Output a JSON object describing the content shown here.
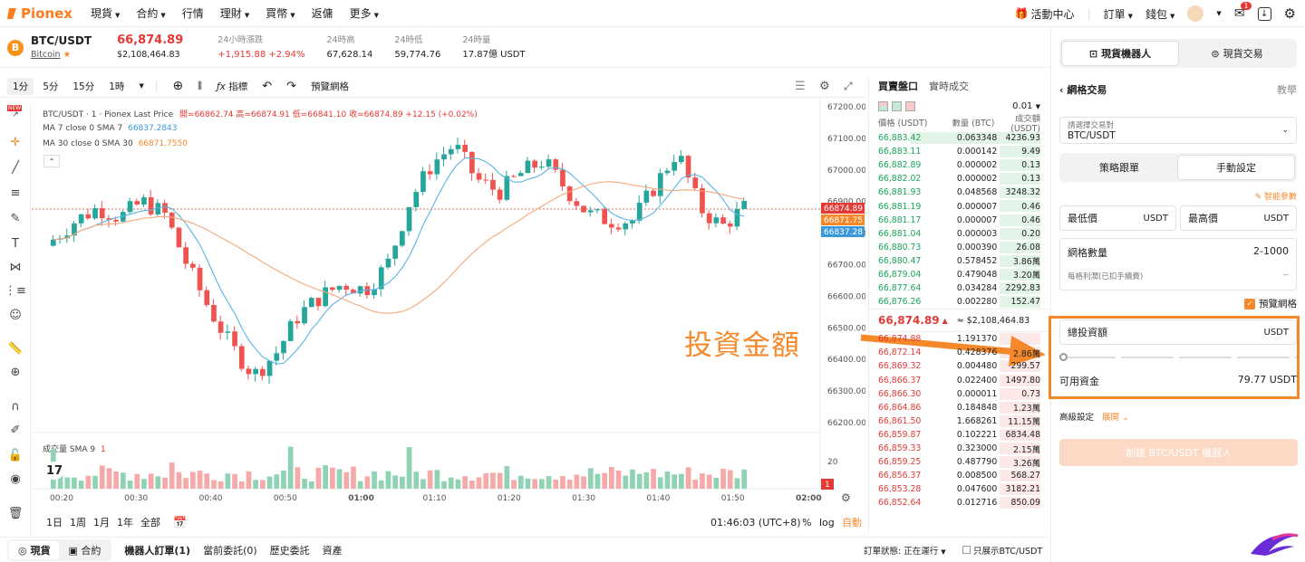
{
  "nav": {
    "brand": "Pionex",
    "menu": [
      {
        "label": "現貨",
        "caret": true
      },
      {
        "label": "合約",
        "caret": true
      },
      {
        "label": "行情",
        "caret": false
      },
      {
        "label": "理財",
        "caret": true
      },
      {
        "label": "買幣",
        "caret": true
      },
      {
        "label": "返傭",
        "caret": false
      },
      {
        "label": "更多",
        "caret": true
      }
    ],
    "activity": "活動中心",
    "orders": "訂單",
    "wallet": "錢包",
    "mail_badge": "1"
  },
  "ticker": {
    "pair": "BTC/USDT",
    "coin_name": "Bitcoin",
    "coin_letter": "B",
    "price": "66,874.89",
    "price_usd": "$2,108,464.83",
    "change_label": "24小時漲跌",
    "change_value": "+1,915.88 +2.94%",
    "high_label": "24時高",
    "high_value": "67,628.14",
    "low_label": "24時低",
    "low_value": "59,774.76",
    "vol_label": "24時量",
    "vol_value": "17.87億 USDT"
  },
  "toolbar": {
    "intervals": [
      "1分",
      "5分",
      "15分",
      "1時"
    ],
    "indicators": "指標",
    "preview_grid": "預覽網格"
  },
  "chart": {
    "legend_main": "BTC/USDT · 1 · Pionex Last Price",
    "ohlc": "開=66862.74 高=66874.91 低=66841.10 收=66874.89 +12.15 (+0.02%)",
    "ma7_label": "MA 7 close 0 SMA 7",
    "ma7_value": "66837.2843",
    "ma30_label": "MA 30 close 0 SMA 30",
    "ma30_value": "66871.7550",
    "volume_label": "成交量 SMA 9",
    "volume_value": "1",
    "price_ticks": [
      "67200.00",
      "67100.00",
      "67000.00",
      "66900.00",
      "66800.00",
      "66700.00",
      "66600.00",
      "66500.00",
      "66400.00",
      "66300.00",
      "66200.00"
    ],
    "vol_tick": "20",
    "vol_last": "1",
    "price_tag_last": "66874.89",
    "price_tag_ma30": "66871.75",
    "price_tag_ma7": "66837.28",
    "time_ticks": [
      "00:20",
      "00:30",
      "00:40",
      "00:50",
      "01:00",
      "01:10",
      "01:20",
      "01:30",
      "01:40",
      "01:50",
      "02:00"
    ],
    "colors": {
      "up": "#26a69a",
      "down": "#ef5350",
      "ma7": "#5ab4e5",
      "ma30": "#f5a97a"
    }
  },
  "range_bar": {
    "ranges": [
      "1日",
      "1周",
      "1月",
      "1年",
      "全部"
    ],
    "clock": "01:46:03 (UTC+8)",
    "percent": "%",
    "log": "log",
    "auto": "自動"
  },
  "orderbook": {
    "tab_book": "買賣盤口",
    "tab_trades": "實時成交",
    "precision": "0.01",
    "col_price": "價格 (USDT)",
    "col_qty": "數量 (BTC)",
    "col_total": "成交額(USDT)",
    "asks": [
      {
        "p": "66,883.42",
        "q": "0.063348",
        "t": "4236.93",
        "w": 0.8
      },
      {
        "p": "66,883.11",
        "q": "0.000142",
        "t": "9.49",
        "w": 0.25
      },
      {
        "p": "66,882.89",
        "q": "0.000002",
        "t": "0.13",
        "w": 0.25
      },
      {
        "p": "66,882.02",
        "q": "0.000002",
        "t": "0.13",
        "w": 0.25
      },
      {
        "p": "66,881.93",
        "q": "0.048568",
        "t": "3248.32",
        "w": 0.25
      },
      {
        "p": "66,881.19",
        "q": "0.000007",
        "t": "0.46",
        "w": 0.25
      },
      {
        "p": "66,881.17",
        "q": "0.000007",
        "t": "0.46",
        "w": 0.25
      },
      {
        "p": "66,881.04",
        "q": "0.000003",
        "t": "0.20",
        "w": 0.25
      },
      {
        "p": "66,880.73",
        "q": "0.000390",
        "t": "26.08",
        "w": 0.25
      },
      {
        "p": "66,880.47",
        "q": "0.578452",
        "t": "3.86萬",
        "w": 0.25
      },
      {
        "p": "66,879.04",
        "q": "0.479048",
        "t": "3.20萬",
        "w": 0.25
      },
      {
        "p": "66,877.64",
        "q": "0.034284",
        "t": "2292.83",
        "w": 0.25
      },
      {
        "p": "66,876.26",
        "q": "0.002280",
        "t": "152.47",
        "w": 0.25
      }
    ],
    "mid_price": "66,874.89",
    "mid_usd": "≈ $2,108,464.83",
    "bids": [
      {
        "p": "66,874.88",
        "q": "1.191370",
        "t": "",
        "w": 0.25
      },
      {
        "p": "66,872.14",
        "q": "0.428376",
        "t": "2.86萬",
        "w": 0.25
      },
      {
        "p": "66,869.32",
        "q": "0.004480",
        "t": "299.57",
        "w": 0.25
      },
      {
        "p": "66,866.37",
        "q": "0.022400",
        "t": "1497.80",
        "w": 0.25
      },
      {
        "p": "66,866.30",
        "q": "0.000011",
        "t": "0.73",
        "w": 0.25
      },
      {
        "p": "66,864.86",
        "q": "0.184848",
        "t": "1.23萬",
        "w": 0.25
      },
      {
        "p": "66,861.50",
        "q": "1.668261",
        "t": "11.15萬",
        "w": 0.25
      },
      {
        "p": "66,859.87",
        "q": "0.102221",
        "t": "6834.48",
        "w": 0.25
      },
      {
        "p": "66,859.33",
        "q": "0.323000",
        "t": "2.15萬",
        "w": 0.25
      },
      {
        "p": "66,859.25",
        "q": "0.487790",
        "t": "3.26萬",
        "w": 0.25
      },
      {
        "p": "66,856.37",
        "q": "0.008500",
        "t": "568.27",
        "w": 0.25
      },
      {
        "p": "66,853.28",
        "q": "0.047600",
        "t": "3182.21",
        "w": 0.25
      },
      {
        "p": "66,852.64",
        "q": "0.012716",
        "t": "850.09",
        "w": 0.25
      }
    ]
  },
  "footer": {
    "spot": "現貨",
    "futures": "合約",
    "tabs": [
      "機器人訂單(1)",
      "當前委託(0)",
      "歷史委託",
      "資產"
    ],
    "order_status": "訂單狀態: 正在運行",
    "only_show": "只展示BTC/USDT"
  },
  "panel": {
    "tab_bot": "現貨機器人",
    "tab_trade": "現貨交易",
    "back_title": "網格交易",
    "tutorial": "教學",
    "pair_label": "請選擇交易對",
    "pair_value": "BTC/USDT",
    "mode_copy": "策略跟單",
    "mode_manual": "手動設定",
    "smart_params": "智能參數",
    "min_price": "最低價",
    "max_price": "最高價",
    "unit": "USDT",
    "grid_count_label": "網格數量",
    "grid_count_value": "2-1000",
    "profit_label": "每格利潤(已扣手續費)",
    "profit_value": "--",
    "preview_grid": "預覽網格",
    "invest_label": "總投資額",
    "available_label": "可用資金",
    "available_value": "79.77 USDT",
    "advanced": "高級設定",
    "expand": "展開",
    "create_button": "創建 BTC/USDT 機器人"
  },
  "annotation": {
    "text": "投資金額",
    "color": "#f5892a"
  }
}
